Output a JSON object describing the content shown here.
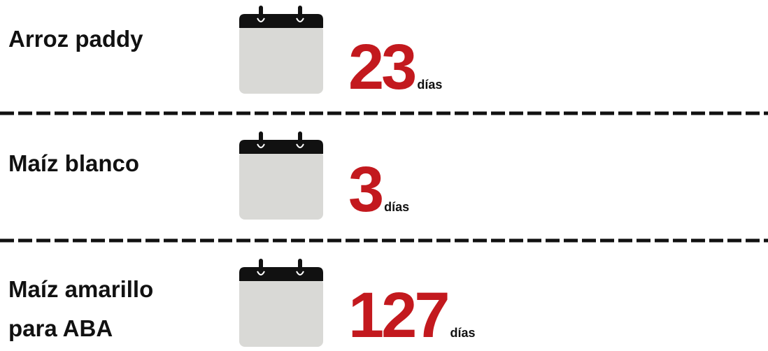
{
  "items": [
    {
      "label": [
        "Arroz paddy"
      ],
      "value": "23",
      "unit": "días"
    },
    {
      "label": [
        "Maíz blanco"
      ],
      "value": "3",
      "unit": "días"
    },
    {
      "label": [
        "Maíz amarillo",
        "para ABA"
      ],
      "value": "127",
      "unit": "días"
    }
  ]
}
